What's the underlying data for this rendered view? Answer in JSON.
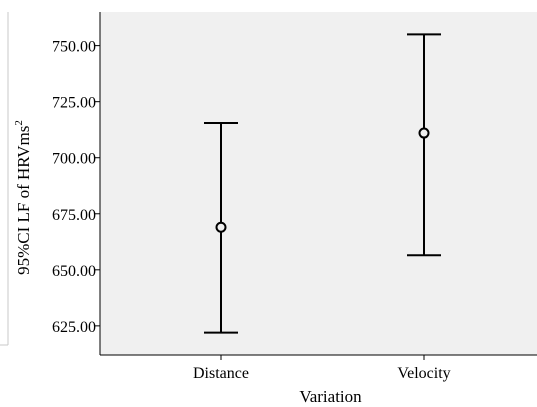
{
  "chart_data": {
    "type": "errorbar",
    "xlabel": "Variation",
    "ylabel_main": "95%CI LF of HRVms",
    "ylabel_superscript": "2",
    "categories": [
      "Distance",
      "Velocity"
    ],
    "means": [
      669,
      711
    ],
    "lower": [
      622,
      656.5
    ],
    "upper": [
      715.5,
      755
    ],
    "yticks": [
      625,
      650,
      675,
      700,
      725,
      750
    ],
    "ytick_labels": [
      "625.00",
      "650.00",
      "675.00",
      "700.00",
      "725.00",
      "750.00"
    ],
    "ylim": [
      612,
      765
    ],
    "grid": false,
    "colors": {
      "plot_background": "#f0f0f0",
      "marks": "#000000"
    }
  }
}
